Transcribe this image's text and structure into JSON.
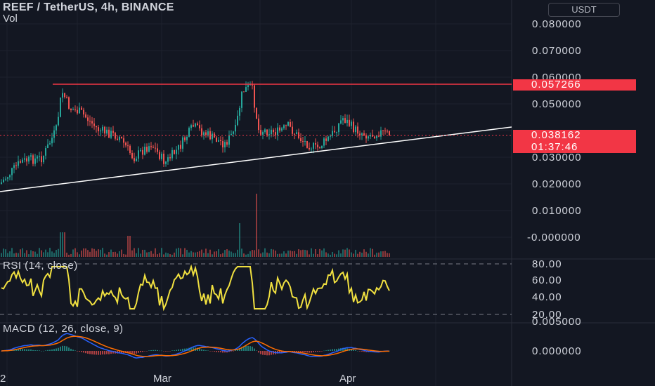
{
  "header": {
    "title": "REEF / TetherUS, 4h, BINANCE",
    "volume_label": "Vol",
    "currency_button": "USDT"
  },
  "price_axis": {
    "labels": [
      "0.080000",
      "0.070000",
      "0.060000",
      "0.050000",
      "0.030000",
      "0.020000",
      "0.010000",
      "-0.000000"
    ]
  },
  "price_tags": {
    "resistance_price": "0.057266",
    "last_price": "0.038162",
    "countdown": "01:37:46"
  },
  "rsi": {
    "label": "RSI (14, close)",
    "axis_labels": [
      "80.00",
      "60.00",
      "40.00",
      "20.00"
    ],
    "line_color": "#f0e040"
  },
  "macd": {
    "label": "MACD (12, 26, close, 9)",
    "axis_labels": [
      "0.005000",
      "0.000000"
    ],
    "macd_color": "#2962ff",
    "signal_color": "#ff6d00"
  },
  "time_axis": {
    "labels": [
      "2",
      "Mar",
      "Apr"
    ]
  },
  "colors": {
    "background": "#131722",
    "up_candle": "#26a69a",
    "down_candle": "#ef5350",
    "resistance_line": "#f23645",
    "trend_line": "#ffffff",
    "grid": "#1e222d"
  }
}
